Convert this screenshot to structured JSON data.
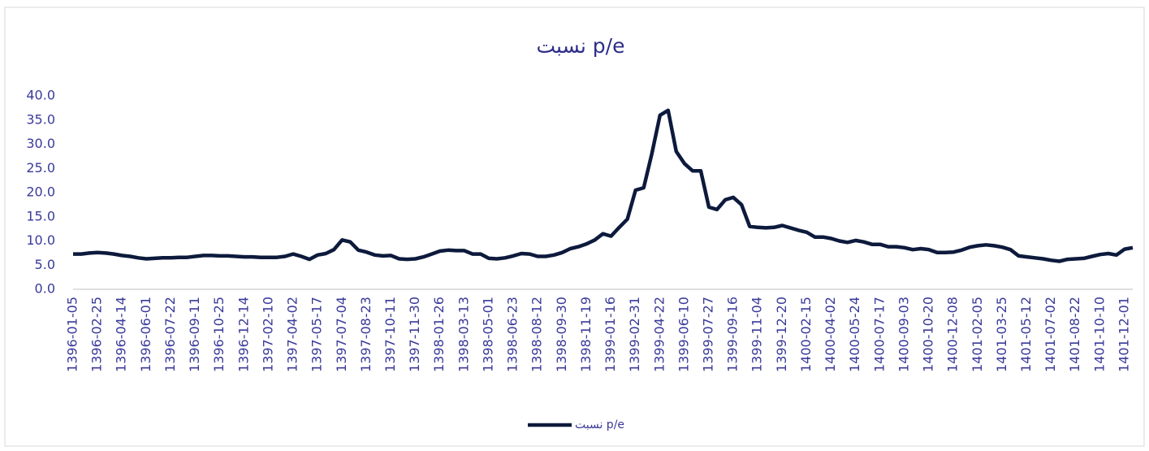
{
  "chart_data": {
    "type": "line",
    "title": "نسبت p/e",
    "categories": [
      "1396-01-05",
      null,
      null,
      "1396-02-25",
      null,
      null,
      "1396-04-14",
      null,
      null,
      "1396-06-01",
      null,
      null,
      "1396-07-22",
      null,
      null,
      "1396-09-11",
      null,
      null,
      "1396-10-25",
      null,
      null,
      "1396-12-14",
      null,
      null,
      "1397-02-10",
      null,
      null,
      "1397-04-02",
      null,
      null,
      "1397-05-17",
      null,
      null,
      "1397-07-04",
      null,
      null,
      "1397-08-23",
      null,
      null,
      "1397-10-11",
      null,
      null,
      "1397-11-30",
      null,
      null,
      "1398-01-26",
      null,
      null,
      "1398-03-13",
      null,
      null,
      "1398-05-01",
      null,
      null,
      "1398-06-23",
      null,
      null,
      "1398-08-12",
      null,
      null,
      "1398-09-30",
      null,
      null,
      "1398-11-19",
      null,
      null,
      "1399-01-16",
      null,
      null,
      "1399-02-31",
      null,
      null,
      "1399-04-22",
      null,
      null,
      "1399-06-10",
      null,
      null,
      "1399-07-27",
      null,
      null,
      "1399-09-16",
      null,
      null,
      "1399-11-04",
      null,
      null,
      "1399-12-20",
      null,
      null,
      "1400-02-15",
      null,
      null,
      "1400-04-02",
      null,
      null,
      "1400-05-24",
      null,
      null,
      "1400-07-17",
      null,
      null,
      "1400-09-03",
      null,
      null,
      "1400-10-20",
      null,
      null,
      "1400-12-08",
      null,
      null,
      "1401-02-05",
      null,
      null,
      "1401-03-25",
      null,
      null,
      "1401-05-12",
      null,
      null,
      "1401-07-02",
      null,
      null,
      "1401-08-22",
      null,
      null,
      "1401-10-10",
      null,
      null,
      "1401-12-01",
      null
    ],
    "series": [
      {
        "name": "نسبت p/e",
        "color": "#0d1a3c",
        "values": [
          7.3,
          7.3,
          7.5,
          7.6,
          7.5,
          7.3,
          7.0,
          6.8,
          6.5,
          6.3,
          6.4,
          6.5,
          6.5,
          6.6,
          6.6,
          6.8,
          7.0,
          7.0,
          6.9,
          6.9,
          6.8,
          6.7,
          6.7,
          6.6,
          6.6,
          6.6,
          6.8,
          7.3,
          6.8,
          6.2,
          7.1,
          7.4,
          8.2,
          10.2,
          9.8,
          8.1,
          7.7,
          7.1,
          6.9,
          7.0,
          6.3,
          6.2,
          6.3,
          6.7,
          7.3,
          7.9,
          8.1,
          8.0,
          8.0,
          7.3,
          7.3,
          6.4,
          6.3,
          6.5,
          6.9,
          7.4,
          7.3,
          6.8,
          6.8,
          7.1,
          7.6,
          8.4,
          8.8,
          9.4,
          10.2,
          11.5,
          11.0,
          12.8,
          14.5,
          20.5,
          21.0,
          28.0,
          36.0,
          37.0,
          28.5,
          26.0,
          24.5,
          24.5,
          17.0,
          16.5,
          18.5,
          19.0,
          17.5,
          13.0,
          12.8,
          12.7,
          12.8,
          13.2,
          12.7,
          12.2,
          11.8,
          10.8,
          10.8,
          10.5,
          10.0,
          9.7,
          10.1,
          9.8,
          9.3,
          9.3,
          8.8,
          8.8,
          8.6,
          8.2,
          8.4,
          8.2,
          7.6,
          7.6,
          7.7,
          8.1,
          8.7,
          9.0,
          9.2,
          9.0,
          8.7,
          8.2,
          6.9,
          6.7,
          6.5,
          6.3,
          6.0,
          5.8,
          6.2,
          6.3,
          6.4,
          6.8,
          7.2,
          7.4,
          7.1,
          8.3,
          8.6
        ]
      }
    ],
    "ylim": [
      0,
      40
    ],
    "yticks": [
      {
        "value": 0,
        "label": "0.0"
      },
      {
        "value": 5,
        "label": "5.0"
      },
      {
        "value": 10,
        "label": "10.0"
      },
      {
        "value": 15,
        "label": "15.0"
      },
      {
        "value": 20,
        "label": "20.0"
      },
      {
        "value": 25,
        "label": "25.0"
      },
      {
        "value": 30,
        "label": "30.0"
      },
      {
        "value": 35,
        "label": "35.0"
      },
      {
        "value": 40,
        "label": "40.0"
      }
    ],
    "legend": "bottom"
  }
}
